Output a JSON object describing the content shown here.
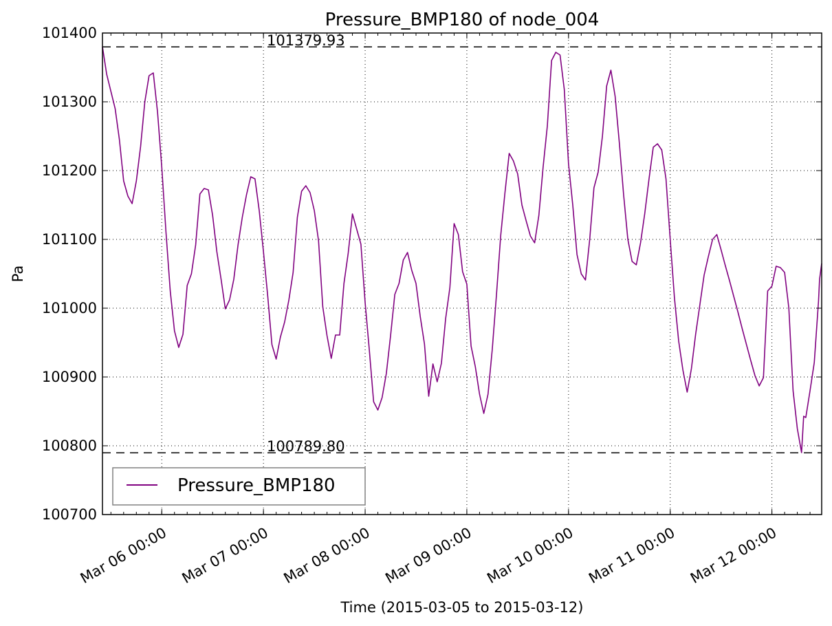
{
  "chart_data": {
    "type": "line",
    "title": "Pressure_BMP180 of node_004",
    "xlabel": "Time (2015-03-05 to 2015-03-12)",
    "ylabel": "Pa",
    "xlim": [
      "2015-03-05 10:00",
      "2015-03-12 11:45"
    ],
    "ylim": [
      100700,
      101400
    ],
    "x_ticks": [
      {
        "t": "2015-03-06 00:00",
        "label": "Mar 06 00:00"
      },
      {
        "t": "2015-03-07 00:00",
        "label": "Mar 07 00:00"
      },
      {
        "t": "2015-03-08 00:00",
        "label": "Mar 08 00:00"
      },
      {
        "t": "2015-03-09 00:00",
        "label": "Mar 09 00:00"
      },
      {
        "t": "2015-03-10 00:00",
        "label": "Mar 10 00:00"
      },
      {
        "t": "2015-03-11 00:00",
        "label": "Mar 11 00:00"
      },
      {
        "t": "2015-03-12 00:00",
        "label": "Mar 12 00:00"
      }
    ],
    "y_ticks": [
      100700,
      100800,
      100900,
      101000,
      101100,
      101200,
      101300,
      101400
    ],
    "grid": true,
    "legend": "lower-left",
    "reference_lines": [
      {
        "value": 101379.93,
        "label": "101379.93"
      },
      {
        "value": 100789.8,
        "label": "100789.80"
      }
    ],
    "series": [
      {
        "name": "Pressure_BMP180",
        "color": "#800080",
        "points": [
          [
            "2015-03-05 10:00",
            101380
          ],
          [
            "2015-03-05 11:00",
            101340
          ],
          [
            "2015-03-05 12:00",
            101315
          ],
          [
            "2015-03-05 13:00",
            101290
          ],
          [
            "2015-03-05 14:00",
            101245
          ],
          [
            "2015-03-05 15:00",
            101185
          ],
          [
            "2015-03-05 16:00",
            101163
          ],
          [
            "2015-03-05 17:00",
            101152
          ],
          [
            "2015-03-05 18:00",
            101185
          ],
          [
            "2015-03-05 19:00",
            101235
          ],
          [
            "2015-03-05 20:00",
            101300
          ],
          [
            "2015-03-05 21:00",
            101338
          ],
          [
            "2015-03-05 22:00",
            101342
          ],
          [
            "2015-03-05 23:00",
            101285
          ],
          [
            "2015-03-06 00:00",
            101205
          ],
          [
            "2015-03-06 01:00",
            101110
          ],
          [
            "2015-03-06 02:00",
            101025
          ],
          [
            "2015-03-06 03:00",
            100967
          ],
          [
            "2015-03-06 04:00",
            100943
          ],
          [
            "2015-03-06 05:00",
            100962
          ],
          [
            "2015-03-06 06:00",
            101033
          ],
          [
            "2015-03-06 07:00",
            101050
          ],
          [
            "2015-03-06 08:00",
            101092
          ],
          [
            "2015-03-06 09:00",
            101166
          ],
          [
            "2015-03-06 10:00",
            101174
          ],
          [
            "2015-03-06 11:00",
            101172
          ],
          [
            "2015-03-06 12:00",
            101135
          ],
          [
            "2015-03-06 13:00",
            101082
          ],
          [
            "2015-03-06 14:00",
            101042
          ],
          [
            "2015-03-06 15:00",
            100999
          ],
          [
            "2015-03-06 16:00",
            101012
          ],
          [
            "2015-03-06 17:00",
            101042
          ],
          [
            "2015-03-06 18:00",
            101092
          ],
          [
            "2015-03-06 19:00",
            101132
          ],
          [
            "2015-03-06 20:00",
            101165
          ],
          [
            "2015-03-06 21:00",
            101191
          ],
          [
            "2015-03-06 22:00",
            101188
          ],
          [
            "2015-03-06 23:00",
            101142
          ],
          [
            "2015-03-07 00:00",
            101082
          ],
          [
            "2015-03-07 01:00",
            101018
          ],
          [
            "2015-03-07 02:00",
            100947
          ],
          [
            "2015-03-07 03:00",
            100926
          ],
          [
            "2015-03-07 04:00",
            100958
          ],
          [
            "2015-03-07 05:00",
            100980
          ],
          [
            "2015-03-07 06:00",
            101012
          ],
          [
            "2015-03-07 07:00",
            101052
          ],
          [
            "2015-03-07 08:00",
            101132
          ],
          [
            "2015-03-07 09:00",
            101170
          ],
          [
            "2015-03-07 10:00",
            101178
          ],
          [
            "2015-03-07 11:00",
            101168
          ],
          [
            "2015-03-07 12:00",
            101142
          ],
          [
            "2015-03-07 13:00",
            101098
          ],
          [
            "2015-03-07 14:00",
            101002
          ],
          [
            "2015-03-07 15:00",
            100960
          ],
          [
            "2015-03-07 16:00",
            100927
          ],
          [
            "2015-03-07 17:00",
            100961
          ],
          [
            "2015-03-07 18:00",
            100961
          ],
          [
            "2015-03-07 19:00",
            101036
          ],
          [
            "2015-03-07 20:00",
            101080
          ],
          [
            "2015-03-07 21:00",
            101137
          ],
          [
            "2015-03-07 22:00",
            101115
          ],
          [
            "2015-03-07 23:00",
            101093
          ],
          [
            "2015-03-08 00:00",
            101008
          ],
          [
            "2015-03-08 01:00",
            100938
          ],
          [
            "2015-03-08 02:00",
            100864
          ],
          [
            "2015-03-08 03:00",
            100852
          ],
          [
            "2015-03-08 04:00",
            100870
          ],
          [
            "2015-03-08 05:00",
            100905
          ],
          [
            "2015-03-08 06:00",
            100960
          ],
          [
            "2015-03-08 07:00",
            101020
          ],
          [
            "2015-03-08 08:00",
            101036
          ],
          [
            "2015-03-08 09:00",
            101070
          ],
          [
            "2015-03-08 10:00",
            101081
          ],
          [
            "2015-03-08 11:00",
            101055
          ],
          [
            "2015-03-08 12:00",
            101036
          ],
          [
            "2015-03-08 13:00",
            100988
          ],
          [
            "2015-03-08 14:00",
            100948
          ],
          [
            "2015-03-08 15:00",
            100872
          ],
          [
            "2015-03-08 16:00",
            100919
          ],
          [
            "2015-03-08 17:00",
            100893
          ],
          [
            "2015-03-08 18:00",
            100920
          ],
          [
            "2015-03-08 19:00",
            100985
          ],
          [
            "2015-03-08 20:00",
            101030
          ],
          [
            "2015-03-08 21:00",
            101123
          ],
          [
            "2015-03-08 22:00",
            101107
          ],
          [
            "2015-03-08 23:00",
            101053
          ],
          [
            "2015-03-09 00:00",
            101035
          ],
          [
            "2015-03-09 01:00",
            100945
          ],
          [
            "2015-03-09 02:00",
            100915
          ],
          [
            "2015-03-09 03:00",
            100875
          ],
          [
            "2015-03-09 04:00",
            100847
          ],
          [
            "2015-03-09 05:00",
            100875
          ],
          [
            "2015-03-09 06:00",
            100940
          ],
          [
            "2015-03-09 07:00",
            101020
          ],
          [
            "2015-03-09 08:00",
            101106
          ],
          [
            "2015-03-09 09:00",
            101168
          ],
          [
            "2015-03-09 10:00",
            101225
          ],
          [
            "2015-03-09 11:00",
            101214
          ],
          [
            "2015-03-09 12:00",
            101195
          ],
          [
            "2015-03-09 13:00",
            101150
          ],
          [
            "2015-03-09 14:00",
            101127
          ],
          [
            "2015-03-09 15:00",
            101105
          ],
          [
            "2015-03-09 16:00",
            101095
          ],
          [
            "2015-03-09 17:00",
            101135
          ],
          [
            "2015-03-09 18:00",
            101205
          ],
          [
            "2015-03-09 19:00",
            101265
          ],
          [
            "2015-03-09 20:00",
            101360
          ],
          [
            "2015-03-09 21:00",
            101372
          ],
          [
            "2015-03-09 22:00",
            101368
          ],
          [
            "2015-03-09 23:00",
            101318
          ],
          [
            "2015-03-10 00:00",
            101210
          ],
          [
            "2015-03-10 01:00",
            101150
          ],
          [
            "2015-03-10 02:00",
            101078
          ],
          [
            "2015-03-10 03:00",
            101050
          ],
          [
            "2015-03-10 04:00",
            101041
          ],
          [
            "2015-03-10 05:00",
            101100
          ],
          [
            "2015-03-10 06:00",
            101175
          ],
          [
            "2015-03-10 07:00",
            101198
          ],
          [
            "2015-03-10 08:00",
            101250
          ],
          [
            "2015-03-10 09:00",
            101323
          ],
          [
            "2015-03-10 10:00",
            101346
          ],
          [
            "2015-03-10 11:00",
            101308
          ],
          [
            "2015-03-10 12:00",
            101240
          ],
          [
            "2015-03-10 13:00",
            101165
          ],
          [
            "2015-03-10 14:00",
            101100
          ],
          [
            "2015-03-10 15:00",
            101068
          ],
          [
            "2015-03-10 16:00",
            101063
          ],
          [
            "2015-03-10 17:00",
            101095
          ],
          [
            "2015-03-10 18:00",
            101138
          ],
          [
            "2015-03-10 19:00",
            101188
          ],
          [
            "2015-03-10 20:00",
            101234
          ],
          [
            "2015-03-10 21:00",
            101239
          ],
          [
            "2015-03-10 22:00",
            101230
          ],
          [
            "2015-03-10 23:00",
            101188
          ],
          [
            "2015-03-11 00:00",
            101100
          ],
          [
            "2015-03-11 01:00",
            101015
          ],
          [
            "2015-03-11 02:00",
            100952
          ],
          [
            "2015-03-11 03:00",
            100910
          ],
          [
            "2015-03-11 04:00",
            100878
          ],
          [
            "2015-03-11 05:00",
            100912
          ],
          [
            "2015-03-11 06:00",
            100962
          ],
          [
            "2015-03-11 07:00",
            101005
          ],
          [
            "2015-03-11 08:00",
            101048
          ],
          [
            "2015-03-11 09:00",
            101075
          ],
          [
            "2015-03-11 10:00",
            101100
          ],
          [
            "2015-03-11 11:00",
            101107
          ],
          [
            "2015-03-11 12:00",
            101085
          ],
          [
            "2015-03-11 13:00",
            101062
          ],
          [
            "2015-03-11 14:00",
            101040
          ],
          [
            "2015-03-11 15:00",
            101017
          ],
          [
            "2015-03-11 16:00",
            100994
          ],
          [
            "2015-03-11 17:00",
            100970
          ],
          [
            "2015-03-11 18:00",
            100947
          ],
          [
            "2015-03-11 19:00",
            100924
          ],
          [
            "2015-03-11 20:00",
            100902
          ],
          [
            "2015-03-11 21:00",
            100887
          ],
          [
            "2015-03-11 22:00",
            100899
          ],
          [
            "2015-03-11 23:00",
            101025
          ],
          [
            "2015-03-12 00:00",
            101032
          ],
          [
            "2015-03-12 01:00",
            101061
          ],
          [
            "2015-03-12 02:00",
            101059
          ],
          [
            "2015-03-12 03:00",
            101052
          ],
          [
            "2015-03-12 04:00",
            101000
          ],
          [
            "2015-03-12 05:00",
            100880
          ],
          [
            "2015-03-12 06:00",
            100825
          ],
          [
            "2015-03-12 07:00",
            100790
          ],
          [
            "2015-03-12 07:30",
            100843
          ],
          [
            "2015-03-12 08:00",
            100841
          ],
          [
            "2015-03-12 09:00",
            100880
          ],
          [
            "2015-03-12 10:00",
            100921
          ],
          [
            "2015-03-12 11:00",
            101010
          ],
          [
            "2015-03-12 11:15",
            101042
          ],
          [
            "2015-03-12 11:45",
            101065
          ]
        ]
      }
    ]
  }
}
